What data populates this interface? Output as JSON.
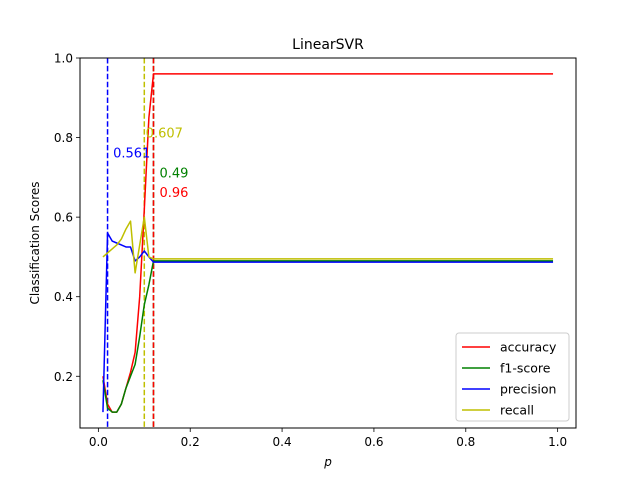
{
  "chart_data": {
    "type": "line",
    "title": "LinearSVR",
    "xlabel": "p",
    "ylabel": "Classification Scores",
    "xlim": [
      -0.04,
      1.04
    ],
    "ylim": [
      0.07,
      1.0
    ],
    "xticks": [
      0.0,
      0.2,
      0.4,
      0.6,
      0.8,
      1.0
    ],
    "xtick_labels": [
      "0.0",
      "0.2",
      "0.4",
      "0.6",
      "0.8",
      "1.0"
    ],
    "yticks": [
      0.2,
      0.4,
      0.6,
      0.8,
      1.0
    ],
    "ytick_labels": [
      "0.2",
      "0.4",
      "0.6",
      "0.8",
      "1.0"
    ],
    "grid": false,
    "legend_position": "lower-right",
    "series": [
      {
        "name": "accuracy",
        "color": "#ff0000",
        "x": [
          0.01,
          0.02,
          0.03,
          0.04,
          0.05,
          0.06,
          0.07,
          0.08,
          0.09,
          0.1,
          0.11,
          0.12,
          0.99
        ],
        "y": [
          0.2,
          0.13,
          0.11,
          0.11,
          0.13,
          0.17,
          0.21,
          0.26,
          0.4,
          0.62,
          0.85,
          0.96,
          0.96
        ]
      },
      {
        "name": "f1-score",
        "color": "#008000",
        "x": [
          0.01,
          0.02,
          0.03,
          0.04,
          0.05,
          0.06,
          0.07,
          0.08,
          0.09,
          0.1,
          0.11,
          0.12,
          0.99
        ],
        "y": [
          0.19,
          0.12,
          0.11,
          0.11,
          0.13,
          0.17,
          0.2,
          0.23,
          0.3,
          0.38,
          0.43,
          0.49,
          0.49
        ]
      },
      {
        "name": "precision",
        "color": "#0000ff",
        "x": [
          0.01,
          0.02,
          0.03,
          0.04,
          0.05,
          0.06,
          0.07,
          0.08,
          0.09,
          0.1,
          0.11,
          0.12,
          0.99
        ],
        "y": [
          0.11,
          0.56,
          0.54,
          0.535,
          0.53,
          0.525,
          0.525,
          0.49,
          0.5,
          0.515,
          0.5,
          0.487,
          0.487
        ]
      },
      {
        "name": "recall",
        "color": "#bfbf00",
        "x": [
          0.01,
          0.02,
          0.03,
          0.04,
          0.05,
          0.06,
          0.07,
          0.08,
          0.09,
          0.1,
          0.11,
          0.12,
          0.99
        ],
        "y": [
          0.5,
          0.51,
          0.52,
          0.53,
          0.545,
          0.57,
          0.59,
          0.46,
          0.53,
          0.6,
          0.5,
          0.495,
          0.495
        ]
      }
    ],
    "vlines": [
      {
        "x": 0.02,
        "color": "#0000ff",
        "label": "0.561",
        "label_x": 0.032,
        "label_y": 0.75
      },
      {
        "x": 0.1,
        "color": "#bfbf00",
        "label": "0.607",
        "label_x": 0.103,
        "label_y": 0.8
      },
      {
        "x": 0.12,
        "color": "#008000",
        "label": "0.49",
        "label_x": 0.133,
        "label_y": 0.7
      },
      {
        "x": 0.12,
        "color": "#ff0000",
        "label": "0.96",
        "label_x": 0.133,
        "label_y": 0.65
      }
    ]
  }
}
